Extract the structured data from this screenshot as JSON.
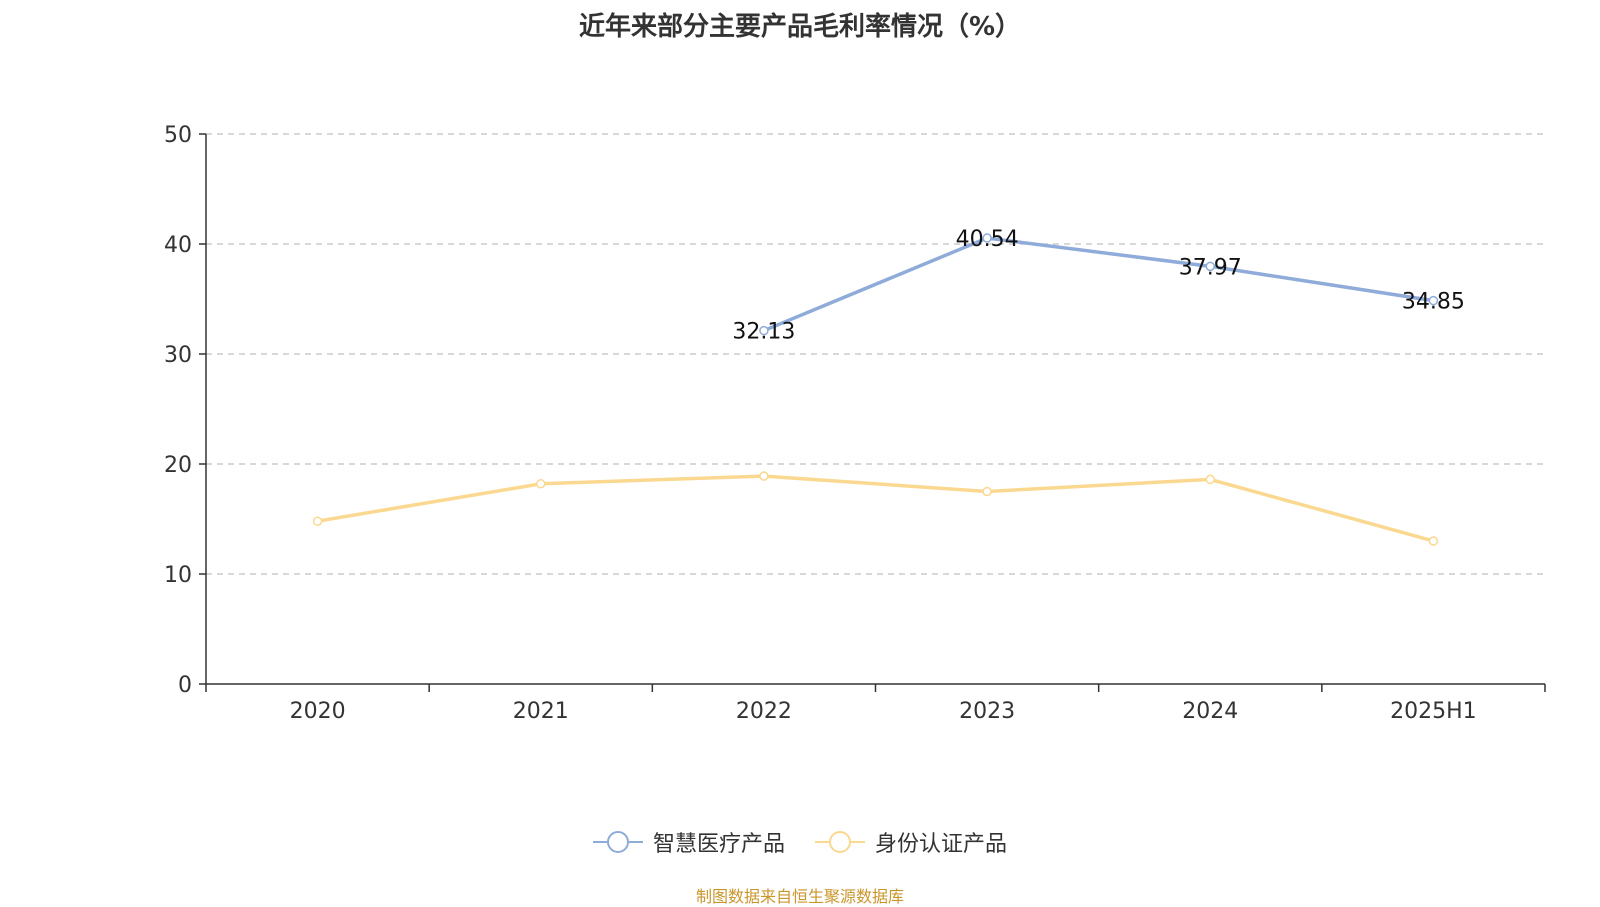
{
  "chart_data": {
    "type": "line",
    "title": "近年来部分主要产品毛利率情况（%）",
    "categories": [
      "2020",
      "2021",
      "2022",
      "2023",
      "2024",
      "2025H1"
    ],
    "ylim": [
      0,
      50
    ],
    "yticks": [
      0,
      10,
      20,
      30,
      40,
      50
    ],
    "grid": true,
    "legend_position": "bottom",
    "series": [
      {
        "name": "智慧医疗产品",
        "color": "#8fabd9",
        "values": [
          null,
          null,
          32.13,
          40.54,
          37.97,
          34.85
        ],
        "labels": [
          "",
          "",
          "32.13",
          "40.54",
          "37.97",
          "34.85"
        ]
      },
      {
        "name": "身份认证产品",
        "color": "#fad890",
        "values": [
          14.8,
          18.2,
          18.9,
          17.5,
          18.6,
          13.0
        ],
        "labels": [
          "",
          "",
          "",
          "",
          "",
          ""
        ]
      }
    ]
  },
  "source_note": "制图数据来自恒生聚源数据库"
}
